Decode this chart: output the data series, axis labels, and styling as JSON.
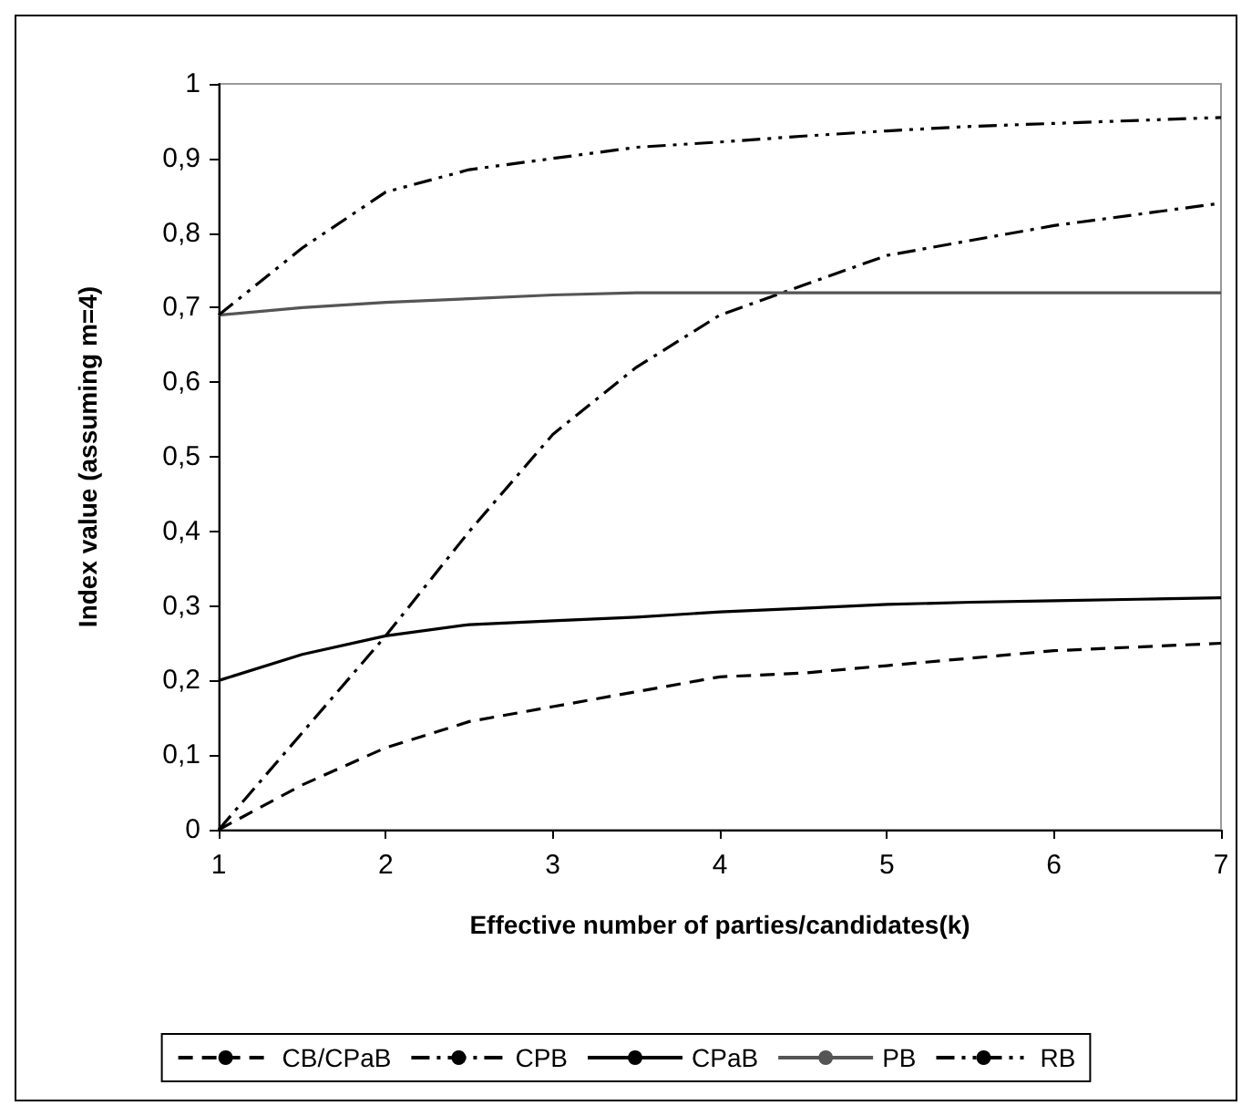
{
  "chart_data": {
    "type": "line",
    "xlabel": "Effective number of parties/candidates(k)",
    "ylabel": "Index value (assuming m=4)",
    "x": [
      1,
      1.5,
      2,
      2.5,
      3,
      3.5,
      4,
      4.5,
      5,
      5.5,
      6,
      6.5,
      7
    ],
    "series": [
      {
        "name": "CB/CPaB",
        "color": "#000000",
        "line_style": "dashed",
        "values": [
          0,
          0.06,
          0.11,
          0.145,
          0.165,
          0.185,
          0.205,
          0.21,
          0.22,
          0.23,
          0.24,
          0.245,
          0.25
        ]
      },
      {
        "name": "CPB",
        "color": "#000000",
        "line_style": "dashdot",
        "values": [
          0,
          0.13,
          0.26,
          0.4,
          0.53,
          0.62,
          0.69,
          0.73,
          0.77,
          0.79,
          0.81,
          0.825,
          0.84
        ]
      },
      {
        "name": "CPaB",
        "color": "#000000",
        "line_style": "solid",
        "values": [
          0.2,
          0.235,
          0.26,
          0.275,
          0.28,
          0.285,
          0.292,
          0.297,
          0.302,
          0.305,
          0.307,
          0.309,
          0.311
        ]
      },
      {
        "name": "PB",
        "color": "#555555",
        "line_style": "solid",
        "values": [
          0.69,
          0.7,
          0.707,
          0.712,
          0.717,
          0.72,
          0.72,
          0.72,
          0.72,
          0.72,
          0.72,
          0.72,
          0.72
        ]
      },
      {
        "name": "RB",
        "color": "#000000",
        "line_style": "dashdotdot",
        "values": [
          0.69,
          0.78,
          0.855,
          0.885,
          0.9,
          0.915,
          0.922,
          0.93,
          0.937,
          0.943,
          0.947,
          0.951,
          0.955
        ]
      }
    ],
    "xlim": [
      1,
      7
    ],
    "xticks": [
      1,
      2,
      3,
      4,
      5,
      6,
      7
    ],
    "ylim": [
      0,
      1
    ],
    "yticks": [
      {
        "value": 0,
        "label": "0"
      },
      {
        "value": 0.1,
        "label": "0,1"
      },
      {
        "value": 0.2,
        "label": "0,2"
      },
      {
        "value": 0.3,
        "label": "0,3"
      },
      {
        "value": 0.4,
        "label": "0,4"
      },
      {
        "value": 0.5,
        "label": "0,5"
      },
      {
        "value": 0.6,
        "label": "0,6"
      },
      {
        "value": 0.7,
        "label": "0,7"
      },
      {
        "value": 0.8,
        "label": "0,8"
      },
      {
        "value": 0.9,
        "label": "0,9"
      },
      {
        "value": 1,
        "label": "1"
      }
    ],
    "grid": false,
    "legend": "bottom",
    "marker": "none"
  }
}
